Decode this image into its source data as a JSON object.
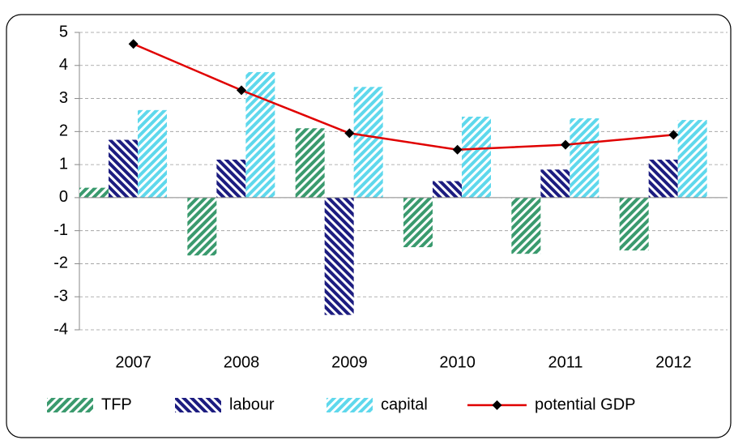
{
  "chart_data": {
    "type": "bar",
    "categories": [
      "2007",
      "2008",
      "2009",
      "2010",
      "2011",
      "2012"
    ],
    "series": [
      {
        "name": "TFP",
        "color": "#3a9a6e",
        "values": [
          0.3,
          -1.75,
          2.1,
          -1.5,
          -1.7,
          -1.6
        ]
      },
      {
        "name": "labour",
        "color": "#1c1c80",
        "values": [
          1.75,
          1.15,
          -3.55,
          0.5,
          0.85,
          1.15
        ]
      },
      {
        "name": "capital",
        "color": "#5fd8ec",
        "values": [
          2.65,
          3.8,
          3.35,
          2.45,
          2.4,
          2.35
        ]
      },
      {
        "name": "potential GDP",
        "type": "line",
        "color": "#e00000",
        "values": [
          4.65,
          3.25,
          1.95,
          1.45,
          1.6,
          1.9
        ]
      }
    ],
    "ylim": [
      -4,
      5
    ],
    "yticks": [
      -4,
      -3,
      -2,
      -1,
      0,
      1,
      2,
      3,
      4,
      5
    ],
    "grid": true,
    "legend": "bottom"
  }
}
